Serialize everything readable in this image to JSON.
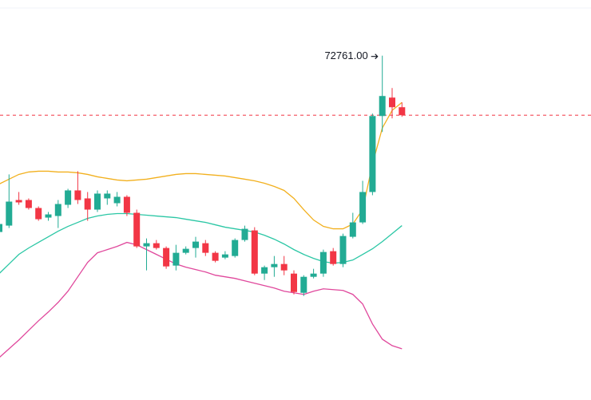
{
  "chart_data": {
    "type": "candlestick",
    "categories": [
      null,
      null,
      null,
      null,
      null,
      null,
      null,
      null,
      null,
      null,
      null,
      null,
      null,
      null,
      null,
      null,
      null,
      null,
      null,
      null,
      null,
      null,
      null,
      null,
      null,
      null,
      null,
      null,
      null,
      null,
      null,
      null,
      null,
      null,
      null,
      null,
      null,
      null,
      null,
      null,
      null,
      null
    ],
    "open": [
      67250,
      67450,
      68250,
      68250,
      68000,
      67700,
      67750,
      68100,
      68550,
      68300,
      67950,
      68300,
      68150,
      68350,
      67850,
      66800,
      66900,
      66750,
      66200,
      66600,
      66750,
      66900,
      66600,
      66450,
      66500,
      67000,
      67300,
      65950,
      66150,
      66250,
      65950,
      65350,
      65850,
      65950,
      66650,
      66250,
      67100,
      67550,
      68500,
      70875,
      71450,
      71150
    ],
    "high": [
      67600,
      69050,
      68500,
      68300,
      68050,
      67875,
      68250,
      68600,
      69150,
      68500,
      68550,
      68550,
      68500,
      68400,
      67950,
      67050,
      67000,
      66800,
      66850,
      66800,
      67100,
      67000,
      66650,
      66650,
      67050,
      67450,
      67400,
      66200,
      66500,
      66500,
      66050,
      65900,
      66100,
      66700,
      66750,
      67200,
      67850,
      68850,
      70950,
      72761,
      71750,
      71300
    ],
    "low": [
      67200,
      67375,
      68100,
      67950,
      67600,
      67600,
      67375,
      68000,
      68125,
      67600,
      67875,
      68100,
      68050,
      67750,
      66750,
      66050,
      66700,
      66100,
      66050,
      66550,
      66450,
      66500,
      66300,
      66400,
      66450,
      66950,
      65900,
      65750,
      65850,
      65900,
      65300,
      65250,
      65800,
      65850,
      66200,
      66150,
      67050,
      67500,
      68400,
      70375,
      70800,
      70850
    ],
    "close": [
      67500,
      68200,
      68175,
      68000,
      67650,
      67800,
      68125,
      68550,
      68250,
      67950,
      68450,
      68450,
      68350,
      67850,
      66800,
      66900,
      66750,
      66175,
      66600,
      66725,
      66950,
      66600,
      66350,
      66550,
      67000,
      67350,
      65950,
      66150,
      66250,
      66050,
      65375,
      65850,
      65950,
      66625,
      66250,
      67125,
      67550,
      68500,
      70875,
      71500,
      71150,
      70900
    ],
    "up_color": "#22ab94",
    "down_color": "#f23645",
    "bands": [
      {
        "color": "#f2b01e",
        "values": [
          68750,
          68900,
          69050,
          69125,
          69150,
          69150,
          69125,
          69125,
          69100,
          69050,
          68975,
          68925,
          68875,
          68850,
          68875,
          68900,
          68950,
          69000,
          69050,
          69075,
          69075,
          69050,
          69025,
          69000,
          68950,
          68900,
          68850,
          68775,
          68675,
          68550,
          68300,
          67950,
          67625,
          67425,
          67350,
          67350,
          67500,
          67950,
          69375,
          70500,
          71050,
          71300
        ]
      },
      {
        "color": "#2bc7a5",
        "values": [
          65950,
          66250,
          66550,
          66750,
          66925,
          67100,
          67275,
          67425,
          67550,
          67675,
          67750,
          67800,
          67825,
          67825,
          67800,
          67775,
          67750,
          67725,
          67700,
          67650,
          67600,
          67550,
          67475,
          67400,
          67350,
          67300,
          67250,
          67150,
          67025,
          66875,
          66700,
          66550,
          66425,
          66325,
          66275,
          66300,
          66375,
          66550,
          66725,
          66950,
          67200,
          67450
        ]
      },
      {
        "color": "#e0489c",
        "values": [
          63325,
          63600,
          63875,
          64175,
          64475,
          64750,
          65050,
          65400,
          65850,
          66300,
          66600,
          66700,
          66800,
          66925,
          66850,
          66700,
          66550,
          66400,
          66250,
          66150,
          66075,
          66000,
          65900,
          65850,
          65800,
          65725,
          65650,
          65575,
          65500,
          65400,
          65350,
          65300,
          65400,
          65475,
          65450,
          65425,
          65300,
          65000,
          64375,
          63900,
          63700,
          63600
        ]
      }
    ],
    "last_price": 70900,
    "last_price_color": "#f23645",
    "high_annotation": "72761.00",
    "ylim": [
      62000,
      74500
    ]
  }
}
